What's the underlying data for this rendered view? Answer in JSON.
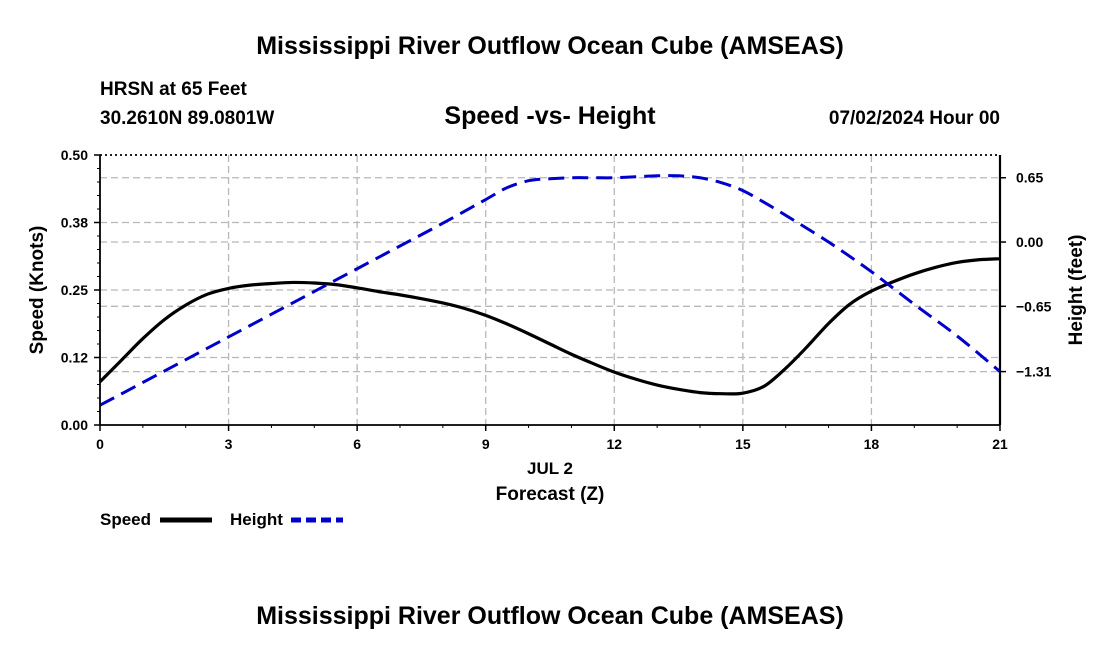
{
  "header": {
    "title": "Mississippi River Outflow Ocean Cube (AMSEAS)",
    "station": "HRSN at 65 Feet",
    "coords": "30.2610N  89.0801W",
    "datetime": "07/02/2024 Hour 00",
    "footer_title": "Mississippi River Outflow Ocean Cube (AMSEAS)"
  },
  "chart_data": {
    "type": "line",
    "title": "Speed -vs- Height",
    "xlabel": "Forecast (Z)",
    "date_label": "JUL 2",
    "ylabel": "Speed (Knots)",
    "y2label": "Height (feet)",
    "xlim": [
      0,
      21
    ],
    "ylim": [
      0,
      0.5
    ],
    "y2lim": [
      -1.85,
      0.88
    ],
    "xticks": [
      0,
      3,
      6,
      9,
      12,
      15,
      18,
      21
    ],
    "xtick_labels": [
      "0",
      "3",
      "6",
      "9",
      "12",
      "15",
      "18",
      "21"
    ],
    "yticks": [
      0.0,
      0.125,
      0.25,
      0.375,
      0.5
    ],
    "ytick_labels": [
      "0.00",
      "0.12",
      "0.25",
      "0.38",
      "0.50"
    ],
    "y2ticks": [
      0.65,
      0.0,
      -0.65,
      -1.31
    ],
    "y2tick_labels": [
      "0.65",
      "0.00",
      "−0.65",
      "−1.31"
    ],
    "grid": true,
    "series": [
      {
        "name": "Speed",
        "axis": "left",
        "color": "#000000",
        "style": "solid",
        "x": [
          0,
          0.5,
          1,
          1.5,
          2,
          2.5,
          3,
          3.5,
          4,
          4.5,
          5,
          5.5,
          6,
          6.5,
          7,
          7.5,
          8,
          8.5,
          9,
          9.5,
          10,
          10.5,
          11,
          11.5,
          12,
          12.5,
          13,
          13.5,
          14,
          14.5,
          15,
          15.5,
          16,
          16.5,
          17,
          17.5,
          18,
          18.5,
          19,
          19.5,
          20,
          20.5,
          21
        ],
        "values": [
          0.08,
          0.12,
          0.16,
          0.195,
          0.222,
          0.242,
          0.253,
          0.259,
          0.262,
          0.264,
          0.263,
          0.26,
          0.254,
          0.247,
          0.241,
          0.234,
          0.226,
          0.216,
          0.203,
          0.187,
          0.169,
          0.15,
          0.131,
          0.114,
          0.098,
          0.085,
          0.074,
          0.066,
          0.06,
          0.058,
          0.059,
          0.072,
          0.105,
          0.145,
          0.188,
          0.224,
          0.248,
          0.265,
          0.28,
          0.292,
          0.301,
          0.306,
          0.308
        ]
      },
      {
        "name": "Height",
        "axis": "right",
        "color": "#0000cc",
        "style": "dashed",
        "x": [
          0,
          1,
          2,
          3,
          4,
          5,
          6,
          7,
          8,
          9,
          9.5,
          10,
          10.5,
          11,
          11.5,
          12,
          12.5,
          13,
          13.5,
          14,
          14.5,
          15,
          15.5,
          16,
          17,
          18,
          19,
          20,
          21
        ],
        "values": [
          -1.65,
          -1.42,
          -1.19,
          -0.96,
          -0.73,
          -0.5,
          -0.27,
          -0.04,
          0.19,
          0.43,
          0.55,
          0.62,
          0.64,
          0.65,
          0.65,
          0.65,
          0.66,
          0.67,
          0.67,
          0.65,
          0.6,
          0.52,
          0.4,
          0.27,
          0.0,
          -0.3,
          -0.63,
          -0.95,
          -1.31
        ]
      }
    ],
    "legend": [
      {
        "label": "Speed",
        "color": "#000000",
        "style": "solid"
      },
      {
        "label": "Height",
        "color": "#0000cc",
        "style": "dashed"
      }
    ]
  }
}
